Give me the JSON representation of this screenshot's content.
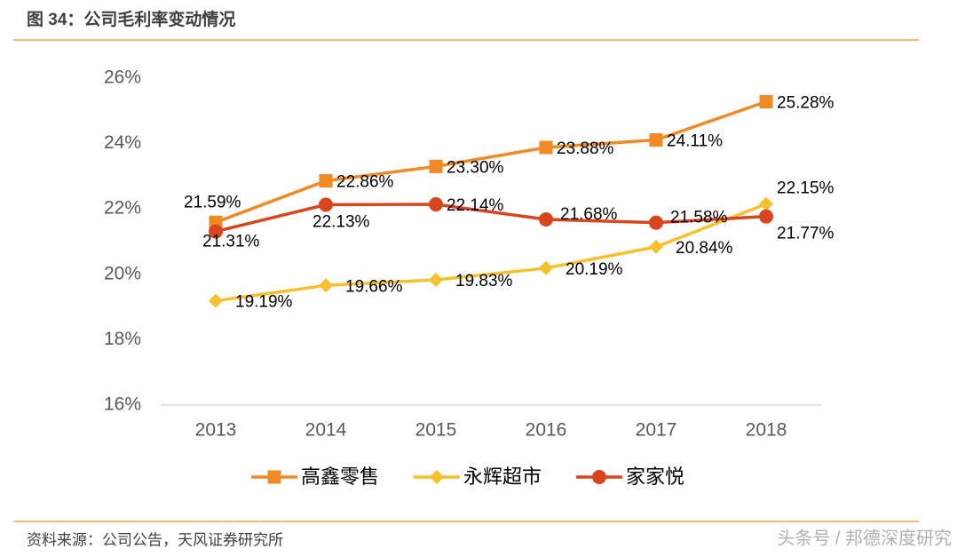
{
  "chart_data": {
    "type": "line",
    "title": "图 34：公司毛利率变动情况",
    "source": "资料来源：公司公告，天风证券研究所",
    "watermark": "头条号 / 邦德深度研究",
    "categories": [
      "2013",
      "2014",
      "2015",
      "2016",
      "2017",
      "2018"
    ],
    "series": [
      {
        "name": "高鑫零售",
        "color": "#f08a24",
        "marker": "square",
        "values": [
          21.59,
          22.86,
          23.3,
          23.88,
          24.11,
          25.28
        ],
        "value_labels": [
          "21.59%",
          "22.86%",
          "23.30%",
          "23.88%",
          "24.11%",
          "25.28%"
        ]
      },
      {
        "name": "永辉超市",
        "color": "#f7c12e",
        "marker": "diamond",
        "values": [
          19.19,
          19.66,
          19.83,
          20.19,
          20.84,
          22.15
        ],
        "value_labels": [
          "19.19%",
          "19.66%",
          "19.83%",
          "20.19%",
          "20.84%",
          "22.15%"
        ]
      },
      {
        "name": "家家悦",
        "color": "#d9451f",
        "marker": "circle",
        "values": [
          21.31,
          22.13,
          22.14,
          21.68,
          21.58,
          21.77
        ],
        "value_labels": [
          "21.31%",
          "22.13%",
          "22.14%",
          "21.68%",
          "21.58%",
          "21.77%"
        ]
      }
    ],
    "ylim": [
      16,
      26
    ],
    "yticks": [
      {
        "value": 16,
        "label": "16%"
      },
      {
        "value": 18,
        "label": "18%"
      },
      {
        "value": 20,
        "label": "20%"
      },
      {
        "value": 22,
        "label": "22%"
      },
      {
        "value": 24,
        "label": "24%"
      },
      {
        "value": 26,
        "label": "26%"
      }
    ],
    "grid": false,
    "legend": "bottom"
  }
}
